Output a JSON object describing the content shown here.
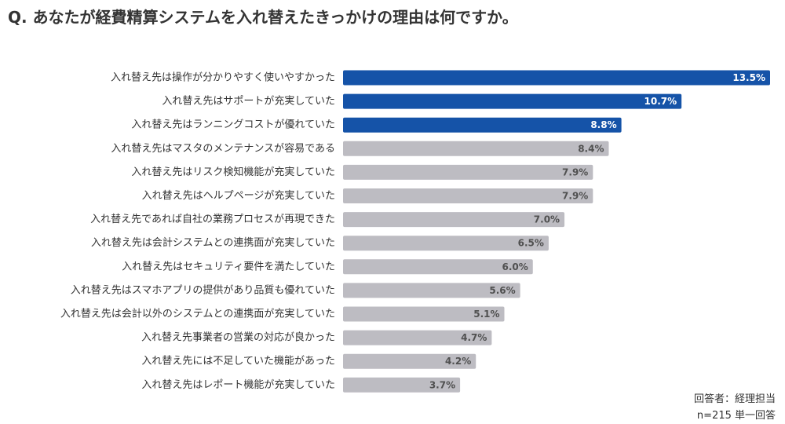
{
  "title": "Q. あなたが経費精算システムを入れ替えたきっかけの理由は何ですか。",
  "chart_data": {
    "type": "bar",
    "orientation": "horizontal",
    "title": "Q. あなたが経費精算システムを入れ替えたきっかけの理由は何ですか。",
    "categories": [
      "入れ替え先は操作が分かりやすく使いやすかった",
      "入れ替え先はサポートが充実していた",
      "入れ替え先はランニングコストが優れていた",
      "入れ替え先はマスタのメンテナンスが容易である",
      "入れ替え先はリスク検知機能が充実していた",
      "入れ替え先はヘルプページが充実していた",
      "入れ替え先であれば自社の業務プロセスが再現できた",
      "入れ替え先は会計システムとの連携面が充実していた",
      "入れ替え先はセキュリティ要件を満たしていた",
      "入れ替え先はスマホアプリの提供があり品質も優れていた",
      "入れ替え先は会計以外のシステムとの連携面が充実していた",
      "入れ替え先事業者の営業の対応が良かった",
      "入れ替え先には不足していた機能があった",
      "入れ替え先はレポート機能が充実していた"
    ],
    "values": [
      13.5,
      10.7,
      8.8,
      8.4,
      7.9,
      7.9,
      7.0,
      6.5,
      6.0,
      5.6,
      5.1,
      4.7,
      4.2,
      3.7
    ],
    "value_labels": [
      "13.5%",
      "10.7%",
      "8.8%",
      "8.4%",
      "7.9%",
      "7.9%",
      "7.0%",
      "6.5%",
      "6.0%",
      "5.6%",
      "5.1%",
      "4.7%",
      "4.2%",
      "3.7%"
    ],
    "unit": "%",
    "highlight_top_n": 3,
    "xlim": [
      0,
      13.5
    ],
    "colors": {
      "highlight": "#1553a8",
      "normal": "#bdbcc2",
      "highlight_label": "#ffffff",
      "normal_label": "#505050"
    }
  },
  "footnote": {
    "respondents": "回答者：経理担当",
    "sample": "n=215 単一回答"
  }
}
